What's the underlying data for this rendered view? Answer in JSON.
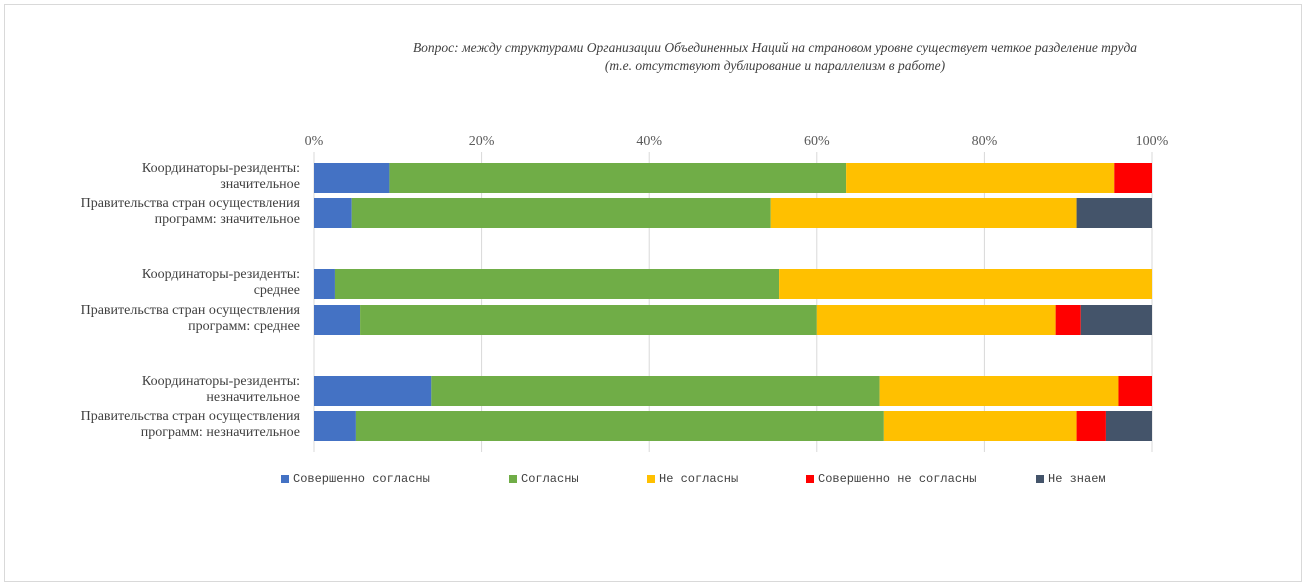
{
  "chart_data": {
    "type": "bar",
    "orientation": "horizontal",
    "stacked": true,
    "percent_stacked": true,
    "title": "Вопрос: между структурами Организации Объединенных Наций на страновом уровне существует четкое разделение труда (т.е. отсутствуют дублирование и параллелизм в работе)",
    "title_lines": [
      "Вопрос: между структурами Организации Объединенных Наций на страновом уровне существует четкое разделение труда",
      "(т.е. отсутствуют дублирование и параллелизм в работе)"
    ],
    "categories": [
      "Координаторы-резиденты: значительное",
      "Правительства стран осуществления программ: значительное",
      "Координаторы-резиденты: среднее",
      "Правительства стран осуществления программ: среднее",
      "Координаторы-резиденты: незначительное",
      "Правительства стран осуществления программ: незначительное"
    ],
    "category_label_lines": [
      [
        "Координаторы-резиденты:",
        "значительное"
      ],
      [
        "Правительства стран осуществления",
        "программ: значительное"
      ],
      [
        "Координаторы-резиденты:",
        "среднее"
      ],
      [
        "Правительства стран осуществления",
        "программ: среднее"
      ],
      [
        "Координаторы-резиденты:",
        "незначительное"
      ],
      [
        "Правительства стран осуществления",
        "программ: незначительное"
      ]
    ],
    "series": [
      {
        "name": "Совершенно согласны",
        "color": "#4472c4",
        "values": [
          9,
          4.5,
          2.5,
          5.5,
          14,
          5
        ]
      },
      {
        "name": "Согласны",
        "color": "#70ad47",
        "values": [
          54.5,
          50,
          53,
          54.5,
          53.5,
          63
        ]
      },
      {
        "name": "Не согласны",
        "color": "#ffc000",
        "values": [
          32,
          36.5,
          44.5,
          28.5,
          28.5,
          23
        ]
      },
      {
        "name": "Совершенно не согласны",
        "color": "#ff0000",
        "values": [
          4.5,
          0,
          0,
          3,
          4,
          3.5
        ]
      },
      {
        "name": "Не знаем",
        "color": "#44546a",
        "values": [
          0,
          9,
          0,
          8.5,
          0,
          5.5
        ]
      }
    ],
    "xlim": [
      0,
      100
    ],
    "x_ticks": [
      "0%",
      "20%",
      "40%",
      "60%",
      "80%",
      "100%"
    ],
    "grid": true,
    "legend_position": "bottom"
  }
}
